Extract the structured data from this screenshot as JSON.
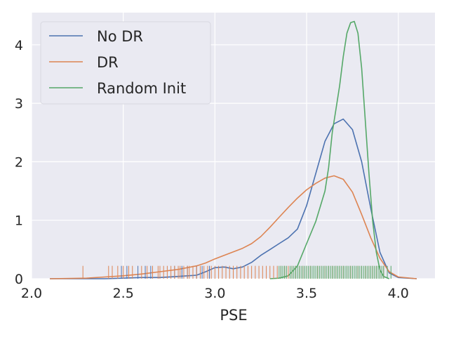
{
  "chart_data": {
    "type": "line",
    "title": "",
    "xlabel": "PSE",
    "ylabel": "",
    "xlim": [
      2.0,
      4.2
    ],
    "ylim": [
      0,
      4.55
    ],
    "xticks": [
      2.0,
      2.5,
      3.0,
      3.5,
      4.0
    ],
    "xtick_labels": [
      "2.0",
      "2.5",
      "3.0",
      "3.5",
      "4.0"
    ],
    "yticks": [
      0,
      1,
      2,
      3,
      4
    ],
    "ytick_labels": [
      "0",
      "1",
      "2",
      "3",
      "4"
    ],
    "grid": true,
    "legend_position": "top-left",
    "background": "#eaeaf2",
    "series": [
      {
        "name": "No DR",
        "color": "#4c72b0",
        "kde": [
          [
            2.1,
            0.0
          ],
          [
            2.4,
            0.0
          ],
          [
            2.5,
            0.01
          ],
          [
            2.6,
            0.02
          ],
          [
            2.7,
            0.02
          ],
          [
            2.8,
            0.04
          ],
          [
            2.9,
            0.06
          ],
          [
            2.95,
            0.12
          ],
          [
            3.0,
            0.19
          ],
          [
            3.05,
            0.2
          ],
          [
            3.1,
            0.17
          ],
          [
            3.15,
            0.2
          ],
          [
            3.2,
            0.28
          ],
          [
            3.25,
            0.4
          ],
          [
            3.3,
            0.5
          ],
          [
            3.35,
            0.6
          ],
          [
            3.4,
            0.7
          ],
          [
            3.45,
            0.85
          ],
          [
            3.5,
            1.25
          ],
          [
            3.55,
            1.8
          ],
          [
            3.6,
            2.35
          ],
          [
            3.65,
            2.65
          ],
          [
            3.7,
            2.73
          ],
          [
            3.75,
            2.55
          ],
          [
            3.8,
            2.0
          ],
          [
            3.85,
            1.2
          ],
          [
            3.9,
            0.45
          ],
          [
            3.95,
            0.1
          ],
          [
            4.0,
            0.02
          ],
          [
            4.1,
            0.0
          ]
        ],
        "rug": [
          2.49,
          2.52,
          2.58,
          2.62,
          2.65,
          2.78,
          2.82,
          2.85,
          2.9,
          2.93,
          2.97
        ]
      },
      {
        "name": "DR",
        "color": "#dd8452",
        "kde": [
          [
            2.1,
            0.0
          ],
          [
            2.3,
            0.01
          ],
          [
            2.4,
            0.03
          ],
          [
            2.5,
            0.05
          ],
          [
            2.6,
            0.08
          ],
          [
            2.7,
            0.12
          ],
          [
            2.8,
            0.16
          ],
          [
            2.9,
            0.22
          ],
          [
            2.95,
            0.27
          ],
          [
            3.0,
            0.34
          ],
          [
            3.05,
            0.4
          ],
          [
            3.1,
            0.46
          ],
          [
            3.15,
            0.52
          ],
          [
            3.2,
            0.6
          ],
          [
            3.25,
            0.72
          ],
          [
            3.3,
            0.88
          ],
          [
            3.35,
            1.05
          ],
          [
            3.4,
            1.22
          ],
          [
            3.45,
            1.38
          ],
          [
            3.5,
            1.52
          ],
          [
            3.55,
            1.63
          ],
          [
            3.6,
            1.72
          ],
          [
            3.65,
            1.76
          ],
          [
            3.7,
            1.7
          ],
          [
            3.75,
            1.48
          ],
          [
            3.8,
            1.1
          ],
          [
            3.85,
            0.7
          ],
          [
            3.9,
            0.35
          ],
          [
            3.95,
            0.12
          ],
          [
            4.0,
            0.03
          ],
          [
            4.1,
            0.0
          ]
        ],
        "rug": [
          2.28,
          2.42,
          2.44,
          2.47,
          2.5,
          2.53,
          2.55,
          2.6,
          2.63,
          2.66,
          2.69,
          2.7,
          2.72,
          2.74,
          2.76,
          2.78,
          2.8,
          2.81,
          2.83,
          2.85,
          2.86,
          2.88,
          2.9,
          2.92,
          2.94,
          2.96,
          2.98,
          3.0,
          3.02,
          3.04,
          3.06,
          3.08,
          3.1,
          3.12,
          3.14,
          3.16,
          3.18,
          3.2,
          3.22,
          3.24,
          3.26,
          3.28,
          3.3,
          3.32,
          3.34,
          3.36,
          3.38,
          3.4,
          3.42,
          3.44,
          3.46,
          3.48,
          3.5,
          3.52,
          3.54,
          3.56,
          3.58,
          3.6,
          3.62,
          3.64,
          3.66,
          3.68,
          3.7,
          3.72,
          3.74,
          3.76,
          3.78,
          3.8,
          3.82,
          3.84,
          3.86,
          3.88,
          3.9,
          3.92
        ]
      },
      {
        "name": "Random Init",
        "color": "#55a868",
        "kde": [
          [
            3.3,
            0.0
          ],
          [
            3.35,
            0.01
          ],
          [
            3.4,
            0.05
          ],
          [
            3.45,
            0.22
          ],
          [
            3.5,
            0.6
          ],
          [
            3.55,
            0.98
          ],
          [
            3.6,
            1.5
          ],
          [
            3.62,
            1.9
          ],
          [
            3.64,
            2.5
          ],
          [
            3.66,
            2.9
          ],
          [
            3.68,
            3.3
          ],
          [
            3.7,
            3.8
          ],
          [
            3.72,
            4.2
          ],
          [
            3.74,
            4.38
          ],
          [
            3.76,
            4.4
          ],
          [
            3.78,
            4.2
          ],
          [
            3.8,
            3.6
          ],
          [
            3.82,
            2.7
          ],
          [
            3.84,
            1.8
          ],
          [
            3.86,
            1.0
          ],
          [
            3.88,
            0.45
          ],
          [
            3.9,
            0.15
          ],
          [
            3.92,
            0.04
          ],
          [
            3.95,
            0.0
          ]
        ],
        "rug": [
          3.35,
          3.36,
          3.37,
          3.38,
          3.39,
          3.41,
          3.42,
          3.43,
          3.44,
          3.45,
          3.46,
          3.47,
          3.48,
          3.49,
          3.5,
          3.51,
          3.52,
          3.53,
          3.54,
          3.55,
          3.56,
          3.57,
          3.58,
          3.59,
          3.6,
          3.61,
          3.62,
          3.63,
          3.64,
          3.65,
          3.66,
          3.67,
          3.68,
          3.69,
          3.7,
          3.71,
          3.72,
          3.73,
          3.74,
          3.75,
          3.76,
          3.77,
          3.78,
          3.79,
          3.8,
          3.81,
          3.82,
          3.83,
          3.84,
          3.85,
          3.86,
          3.87,
          3.88,
          3.89,
          3.9,
          3.91,
          3.92,
          3.94,
          3.96
        ]
      }
    ]
  }
}
